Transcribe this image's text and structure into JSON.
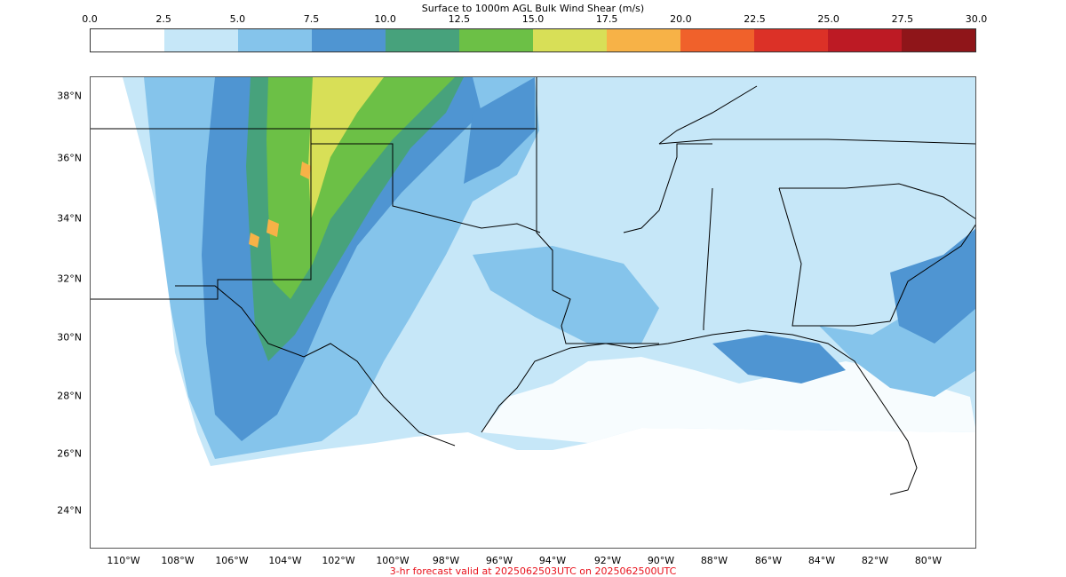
{
  "colorbar": {
    "title": "Surface to 1000m AGL Bulk Wind Shear (m/s)",
    "ticks": [
      "0.0",
      "2.5",
      "5.0",
      "7.5",
      "10.0",
      "12.5",
      "15.0",
      "17.5",
      "20.0",
      "22.5",
      "25.0",
      "27.5",
      "30.0"
    ],
    "colors": [
      "#ffffff",
      "#c6e7f8",
      "#85c4eb",
      "#4f95d2",
      "#47a27c",
      "#6cc046",
      "#d8df57",
      "#f7b247",
      "#f0612b",
      "#dc3127",
      "#bd1a24",
      "#8f1519"
    ]
  },
  "map": {
    "lat_labels": [
      "38°N",
      "36°N",
      "34°N",
      "32°N",
      "30°N",
      "28°N",
      "26°N",
      "24°N"
    ],
    "lon_labels": [
      "110°W",
      "108°W",
      "106°W",
      "104°W",
      "102°W",
      "100°W",
      "98°W",
      "96°W",
      "94°W",
      "92°W",
      "90°W",
      "88°W",
      "86°W",
      "84°W",
      "82°W",
      "80°W"
    ]
  },
  "footer": "3-hr forecast valid at 2025062503UTC on 2025062500UTC"
}
